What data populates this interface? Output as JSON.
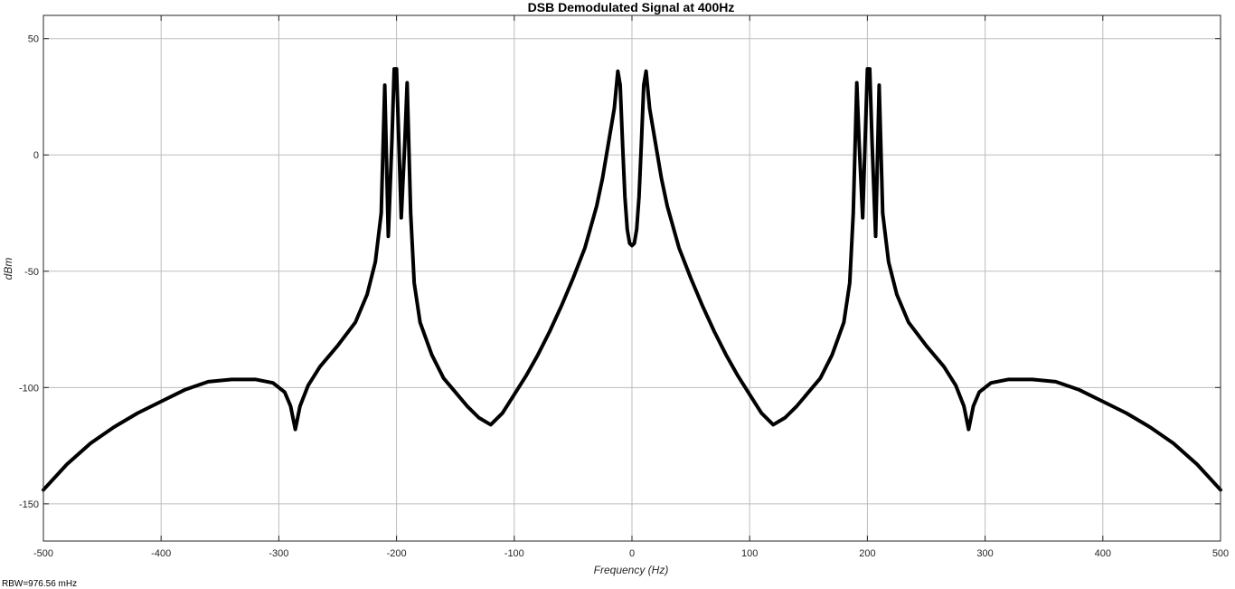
{
  "chart_data": {
    "type": "line",
    "title": "DSB Demodulated Signal at 400Hz",
    "xlabel": "Frequency (Hz)",
    "ylabel": "dBm",
    "xlim": [
      -500,
      500
    ],
    "ylim": [
      -166,
      60
    ],
    "x_ticks": [
      -500,
      -400,
      -300,
      -200,
      -100,
      0,
      100,
      200,
      300,
      400,
      500
    ],
    "y_ticks": [
      -150,
      -100,
      -50,
      0,
      50
    ],
    "grid": true,
    "legend": "none",
    "footer": "RBW=976.56 mHz",
    "series": [
      {
        "color": "#000000",
        "x": [
          -500,
          -480,
          -460,
          -440,
          -420,
          -400,
          -380,
          -360,
          -340,
          -320,
          -305,
          -295,
          -290,
          -286,
          -282,
          -275,
          -265,
          -250,
          -235,
          -225,
          -218,
          -213,
          -210,
          -207,
          -204,
          -202,
          -200,
          -198,
          -196,
          -193,
          -191,
          -188,
          -185,
          -180,
          -170,
          -160,
          -150,
          -140,
          -130,
          -120,
          -110,
          -100,
          -90,
          -80,
          -70,
          -60,
          -50,
          -40,
          -30,
          -25,
          -20,
          -15,
          -12,
          -10,
          -8,
          -6,
          -4,
          -2,
          0,
          2,
          4,
          6,
          8,
          10,
          12,
          15,
          20,
          25,
          30,
          40,
          50,
          60,
          70,
          80,
          90,
          100,
          110,
          120,
          130,
          140,
          150,
          160,
          170,
          180,
          185,
          188,
          191,
          193,
          196,
          198,
          200,
          202,
          204,
          207,
          210,
          213,
          218,
          225,
          235,
          250,
          265,
          275,
          282,
          286,
          290,
          295,
          305,
          320,
          340,
          360,
          380,
          400,
          420,
          440,
          460,
          480,
          500
        ],
        "y": [
          -144,
          -133,
          -124,
          -117,
          -111,
          -106,
          -101,
          -97.5,
          -96.5,
          -96.5,
          -98,
          -102,
          -108,
          -118,
          -108,
          -99,
          -91,
          -82,
          -72,
          -60,
          -46,
          -25,
          30,
          -35,
          5,
          37,
          37,
          5,
          -27,
          5,
          31,
          -25,
          -55,
          -72,
          -86,
          -96,
          -102,
          -108,
          -113,
          -116,
          -111,
          -103,
          -95,
          -86,
          -76,
          -65,
          -53,
          -40,
          -22,
          -10,
          5,
          20,
          36,
          30,
          5,
          -18,
          -32,
          -38,
          -39,
          -38,
          -32,
          -18,
          5,
          30,
          36,
          20,
          5,
          -10,
          -22,
          -40,
          -53,
          -65,
          -76,
          -86,
          -95,
          -103,
          -111,
          -116,
          -113,
          -108,
          -102,
          -96,
          -86,
          -72,
          -55,
          -25,
          31,
          5,
          -27,
          5,
          37,
          37,
          5,
          -35,
          30,
          -25,
          -46,
          -60,
          -72,
          -82,
          -91,
          -99,
          -108,
          -118,
          -108,
          -102,
          -98,
          -96.5,
          -96.5,
          -97.5,
          -101,
          -106,
          -111,
          -117,
          -124,
          -133,
          -144
        ]
      }
    ]
  }
}
